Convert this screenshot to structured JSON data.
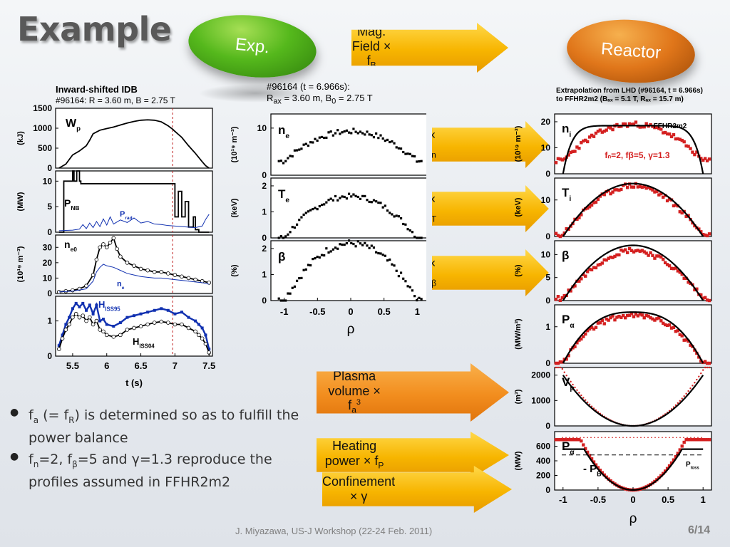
{
  "slide": {
    "title": "Example",
    "exp_label": "Exp.",
    "reactor_label": "Reactor",
    "footer": "J. Miyazawa, US-J Workshop (22-24 Feb. 2011)",
    "page": "6/14"
  },
  "arrows": {
    "mag_field": {
      "text": "Mag. Field × f",
      "sub": "B"
    },
    "fn": {
      "text": "× f",
      "sub": "n"
    },
    "fT": {
      "text": "× f",
      "sub": "T"
    },
    "fbeta": {
      "text": "× f",
      "sub": "β"
    },
    "plasma_volume": {
      "line1": "Plasma volume ×",
      "line2": "f",
      "sub": "a",
      "sup": "3"
    },
    "heating": {
      "text": "Heating power × f",
      "sub": "P"
    },
    "confinement": {
      "text": "Confinement × γ"
    }
  },
  "left_panel": {
    "title1": "Inward-shifted IDB",
    "title2": "#96164: R = 3.60 m, B = 2.75 T"
  },
  "mid_panel": {
    "title1": "#96164 (t = 6.966s):",
    "title2_a": "R",
    "title2_sub": "ax",
    "title2_b": " = 3.60 m, B",
    "title2_sub2": "0",
    "title2_c": " = 2.75 T"
  },
  "right_panel": {
    "title1": "Extrapolation from LHD (#96164, t = 6.966s)",
    "title2": "to FFHR2m2 (Bₐₓ = 5.1 T, Rₐₓ = 15.7 m)"
  },
  "bullets": [
    {
      "a": "f",
      "a_sub": "a",
      "b": "(= f",
      "b_sub": "R",
      "c": ") is determined so as to fulfill the power balance"
    },
    {
      "a": "f",
      "a_sub": "n",
      "b": "=2, f",
      "b_sub": "β",
      "c": "=5 and γ=1.3 reproduce the profiles assumed in FFHR2m2"
    }
  ],
  "colors": {
    "black_trace": "#000000",
    "blue_trace": "#1030b0",
    "red_trace": "#d42020",
    "marker_line": "#c02020",
    "arrow_yellow": "#f7b500",
    "arrow_orange": "#f28d1e"
  },
  "chart_data": [
    {
      "type": "line",
      "title": "Inward-shifted IDB",
      "xlabel": "t (s)",
      "xlim": [
        5.25,
        7.55
      ],
      "xticks": [
        "5.5",
        "6",
        "6.5",
        "7",
        "7.5"
      ],
      "marker_time": 6.966,
      "subplots": [
        {
          "name": "Wp",
          "label": "W",
          "label_sub": "p",
          "ylabel": "(kJ)",
          "ylim": [
            0,
            1500
          ],
          "yticks": [
            "0",
            "500",
            "1000",
            "1500"
          ],
          "series": [
            {
              "x": [
                5.3,
                5.4,
                5.5,
                5.55,
                5.6,
                5.7,
                5.75,
                5.8,
                5.9,
                6.0,
                6.1,
                6.2,
                6.3,
                6.4,
                6.5,
                6.6,
                6.7,
                6.8,
                6.9,
                6.97,
                7.0,
                7.1,
                7.2,
                7.3,
                7.4,
                7.45,
                7.5
              ],
              "y": [
                0,
                100,
                330,
                380,
                430,
                560,
                700,
                860,
                950,
                990,
                1030,
                1080,
                1130,
                1170,
                1200,
                1210,
                1200,
                1160,
                1060,
                970,
                920,
                770,
                560,
                370,
                160,
                60,
                0
              ]
            }
          ]
        },
        {
          "name": "PNB",
          "label": "P",
          "label_sub": "NB",
          "label2": "P",
          "label2_sub": "rad",
          "ylabel": "(MW)",
          "ylim": [
            0,
            12
          ],
          "yticks": [
            "0",
            "5",
            "10"
          ],
          "series": [
            {
              "name": "P_NB",
              "x": [
                5.3,
                5.37,
                5.37,
                5.5,
                5.5,
                5.52,
                5.52,
                5.56,
                5.56,
                5.6,
                5.6,
                5.62,
                5.62,
                7.0,
                7.0,
                7.05,
                7.05,
                7.1,
                7.1,
                7.15,
                7.15,
                7.2,
                7.2,
                7.27,
                7.27,
                7.3,
                7.3,
                7.35,
                7.35,
                7.5
              ],
              "y": [
                0,
                0,
                10,
                10,
                12,
                12,
                10,
                10,
                12,
                12,
                10,
                10,
                9.5,
                9.5,
                3,
                3,
                8,
                8,
                3,
                3,
                6,
                6,
                1,
                1,
                3,
                3,
                0.5,
                0.5,
                0,
                0
              ]
            },
            {
              "name": "P_rad",
              "x": [
                5.3,
                5.5,
                5.6,
                5.65,
                5.7,
                5.75,
                5.8,
                5.85,
                5.9,
                5.95,
                6.0,
                6.05,
                6.1,
                6.2,
                6.3,
                6.4,
                6.5,
                6.6,
                6.7,
                6.8,
                6.9,
                7.0,
                7.1,
                7.2,
                7.3,
                7.4,
                7.45,
                7.5
              ],
              "y": [
                0.3,
                0.4,
                0.6,
                1.5,
                0.7,
                1.8,
                0.9,
                2.1,
                1.1,
                2.6,
                1.4,
                3.0,
                1.6,
                2.4,
                1.9,
                2.8,
                1.8,
                2.1,
                1.6,
                1.5,
                1.3,
                1.2,
                1.1,
                1.0,
                0.9,
                1.2,
                2.5,
                3.5
              ]
            }
          ]
        },
        {
          "name": "ne0",
          "label": "n",
          "label_sub": "e0",
          "label2": "n",
          "label2_sub": "e",
          "ylabel": "(10¹⁹ m⁻³)",
          "ylim": [
            0,
            38
          ],
          "yticks": [
            "0",
            "10",
            "20",
            "30"
          ],
          "series": [
            {
              "name": "n_e0",
              "x": [
                5.3,
                5.4,
                5.5,
                5.6,
                5.7,
                5.8,
                5.85,
                5.9,
                5.95,
                6.0,
                6.05,
                6.1,
                6.15,
                6.2,
                6.3,
                6.4,
                6.5,
                6.6,
                6.7,
                6.8,
                6.9,
                7.0,
                7.1,
                7.2,
                7.3,
                7.4,
                7.5
              ],
              "y": [
                1,
                1.5,
                2,
                3,
                5,
                12,
                22,
                30,
                32,
                30,
                33,
                36,
                29,
                24,
                20,
                18,
                16,
                15,
                14,
                14,
                13,
                12,
                11,
                10,
                9,
                8,
                7
              ]
            },
            {
              "name": "n_e_bar",
              "x": [
                5.3,
                5.5,
                5.7,
                5.8,
                5.85,
                5.9,
                5.95,
                6.0,
                6.1,
                6.2,
                6.3,
                6.4,
                6.5,
                6.6,
                6.7,
                6.8,
                6.9,
                7.0,
                7.1,
                7.2,
                7.3,
                7.4,
                7.5
              ],
              "y": [
                1,
                1.5,
                3,
                8,
                14,
                17,
                19,
                18,
                17,
                15,
                13,
                12,
                11,
                10.5,
                10,
                10,
                9.5,
                9,
                8.5,
                8,
                7.5,
                7,
                6
              ]
            }
          ]
        },
        {
          "name": "HISS",
          "label": "H",
          "label_sub": "ISS95",
          "label2": "H",
          "label2_sub": "ISS04",
          "ylabel": "",
          "ylim": [
            0,
            1.7
          ],
          "yticks": [
            "0",
            "1"
          ],
          "series": [
            {
              "name": "H_ISS95",
              "x": [
                5.3,
                5.35,
                5.4,
                5.45,
                5.5,
                5.55,
                5.6,
                5.65,
                5.7,
                5.75,
                5.8,
                5.85,
                5.9,
                5.95,
                6.0,
                6.1,
                6.2,
                6.3,
                6.4,
                6.5,
                6.6,
                6.7,
                6.8,
                6.9,
                7.0,
                7.1,
                7.2,
                7.3,
                7.35,
                7.4,
                7.45,
                7.5
              ],
              "y": [
                0.3,
                0.6,
                0.9,
                1.1,
                1.35,
                1.5,
                1.4,
                1.5,
                1.3,
                1.45,
                1.2,
                1.45,
                1.0,
                1.05,
                0.9,
                0.85,
                0.95,
                1.1,
                1.15,
                1.2,
                1.25,
                1.3,
                1.35,
                1.3,
                1.2,
                1.25,
                1.1,
                1.0,
                0.9,
                0.8,
                0.6,
                0.2
              ]
            },
            {
              "name": "H_ISS04",
              "x": [
                5.3,
                5.35,
                5.4,
                5.45,
                5.5,
                5.55,
                5.6,
                5.65,
                5.7,
                5.75,
                5.8,
                5.85,
                5.9,
                5.95,
                6.0,
                6.1,
                6.2,
                6.3,
                6.4,
                6.5,
                6.6,
                6.7,
                6.8,
                6.9,
                7.0,
                7.1,
                7.2,
                7.3,
                7.35,
                7.4,
                7.45,
                7.5
              ],
              "y": [
                0.2,
                0.5,
                0.75,
                0.9,
                1.1,
                1.2,
                1.1,
                1.15,
                1.0,
                1.1,
                0.9,
                1.0,
                0.75,
                0.7,
                0.6,
                0.55,
                0.6,
                0.75,
                0.8,
                0.85,
                0.9,
                0.95,
                0.98,
                0.95,
                0.9,
                0.9,
                0.8,
                0.7,
                0.6,
                0.5,
                0.35,
                0.1
              ]
            }
          ]
        }
      ]
    },
    {
      "type": "scatter",
      "title": "#96164 (t = 6.966s)",
      "xlabel": "ρ",
      "xlim": [
        -1.2,
        1.2
      ],
      "xticks": [
        "-1",
        "-0.5",
        "0",
        "0.5",
        "1"
      ],
      "subplots": [
        {
          "name": "ne",
          "label": "n",
          "label_sub": "e",
          "ylabel": "(10¹⁹ m⁻³)",
          "ylim": [
            0,
            13
          ],
          "yticks": [
            "0",
            "10"
          ],
          "profile": {
            "peak": 9.3,
            "edge": 3.0,
            "exp": 2
          }
        },
        {
          "name": "Te",
          "label": "T",
          "label_sub": "e",
          "ylabel": "(keV)",
          "ylim": [
            0,
            2.3
          ],
          "yticks": [
            "0",
            "1",
            "2"
          ],
          "profile": {
            "peak": 1.6,
            "edge": 0.0,
            "exp": 2
          }
        },
        {
          "name": "beta",
          "label": "β",
          "label_sub": "",
          "ylabel": "(%)",
          "ylim": [
            0,
            2.3
          ],
          "yticks": [
            "0",
            "1",
            "2"
          ],
          "profile": {
            "peak": 2.2,
            "edge": 0.0,
            "exp": 2
          }
        }
      ]
    },
    {
      "type": "line",
      "title": "Extrapolation from LHD (#96164, t = 6.966s) to FFHR2m2",
      "xlabel": "ρ",
      "xlim": [
        -1.12,
        1.12
      ],
      "xticks": [
        "-1",
        "-0.5",
        "0",
        "0.5",
        "1"
      ],
      "legend": "FFHR2m2",
      "annotation": "fₙ=2, fβ=5, γ=1.3",
      "subplots": [
        {
          "name": "ni",
          "label": "n",
          "label_sub": "i",
          "ylabel": "(10¹⁹ m⁻³)",
          "ylim": [
            0,
            23
          ],
          "yticks": [
            "0",
            "10",
            "20"
          ],
          "model": {
            "peak": 18.5,
            "edge": 0,
            "exp": 8
          },
          "exp": {
            "peak": 19,
            "edge": 5,
            "exp": 2
          }
        },
        {
          "name": "Ti",
          "label": "T",
          "label_sub": "i",
          "ylabel": "(keV)",
          "ylim": [
            0,
            16
          ],
          "yticks": [
            "0",
            "10"
          ],
          "model": {
            "peak": 14.5,
            "edge": 0,
            "exp": 2
          },
          "exp": {
            "peak": 14,
            "edge": 0.5,
            "exp": 1.8
          }
        },
        {
          "name": "beta",
          "label": "β",
          "label_sub": "",
          "ylabel": "(%)",
          "ylim": [
            0,
            13
          ],
          "yticks": [
            "0",
            "5",
            "10"
          ],
          "model": {
            "peak": 12,
            "edge": 0,
            "exp": 2
          },
          "exp": {
            "peak": 11,
            "edge": 0.5,
            "exp": 1.8
          }
        },
        {
          "name": "Palpha",
          "label": "P",
          "label_sub": "α",
          "ylabel": "(MW/m³)",
          "ylim": [
            0,
            1.6
          ],
          "yticks": [
            "0",
            "1"
          ],
          "model": {
            "peak": 1.4,
            "edge": 0,
            "exp": 2.6
          },
          "exp": {
            "peak": 1.3,
            "edge": 0,
            "exp": 2.4
          }
        },
        {
          "name": "Vp",
          "label": "V",
          "label_sub": "p",
          "ylabel": "(m³)",
          "ylim": [
            0,
            2300
          ],
          "yticks": [
            "0",
            "1000",
            "2000"
          ],
          "model": {
            "peak": 2000,
            "edge": 0,
            "exp": 2,
            "rising": true
          },
          "exp": {
            "peak": 2200,
            "edge": 0,
            "exp": 2,
            "rising": true
          }
        },
        {
          "name": "Palpha-PB",
          "label": "P",
          "label_sub": "α",
          "label3": " - P",
          "label3_sub": "B",
          "ylabel": "(MW)",
          "ylim": [
            0,
            800
          ],
          "yticks": [
            "0",
            "200",
            "400",
            "600"
          ],
          "model": {
            "peak": 560,
            "edge": 0,
            "exp": 2,
            "rising": true
          },
          "exp": {
            "peak": 690,
            "edge": 0,
            "exp": 2,
            "rising": true
          },
          "ploss_label": "P",
          "ploss_sub": "loss",
          "ploss": 480,
          "red_dashed": 720
        }
      ]
    }
  ]
}
